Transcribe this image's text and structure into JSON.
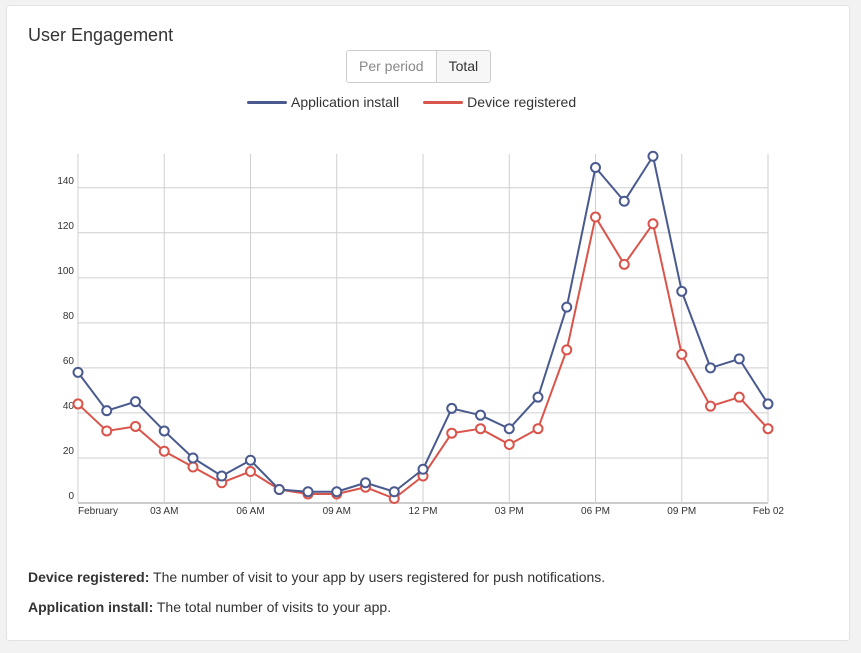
{
  "panel": {
    "title": "User Engagement",
    "toggle": {
      "per_period": "Per period",
      "total": "Total"
    }
  },
  "descriptions": [
    {
      "term": "Device registered:",
      "text": " The number of visit to your app by users registered for push notifications."
    },
    {
      "term": "Application install:",
      "text": " The total number of visits to your app."
    }
  ],
  "chart_data": {
    "type": "line",
    "x_labels": [
      "February",
      "03 AM",
      "06 AM",
      "09 AM",
      "12 PM",
      "03 PM",
      "06 PM",
      "09 PM",
      "Feb 02"
    ],
    "y_ticks": [
      0,
      20,
      40,
      60,
      80,
      100,
      120,
      140
    ],
    "ylim": [
      0,
      155
    ],
    "grid": true,
    "legend_position": "top-center",
    "series": [
      {
        "name": "Application install",
        "color": "#4a5a8e",
        "values": [
          58,
          41,
          45,
          32,
          20,
          12,
          19,
          6,
          5,
          5,
          9,
          5,
          15,
          42,
          39,
          33,
          47,
          87,
          149,
          134,
          154,
          94,
          60,
          64,
          44
        ]
      },
      {
        "name": "Device registered",
        "color": "#d9544b",
        "values": [
          44,
          32,
          34,
          23,
          16,
          9,
          14,
          6,
          4,
          4,
          7,
          2,
          12,
          31,
          33,
          26,
          33,
          68,
          127,
          106,
          124,
          66,
          43,
          47,
          33
        ]
      }
    ]
  }
}
